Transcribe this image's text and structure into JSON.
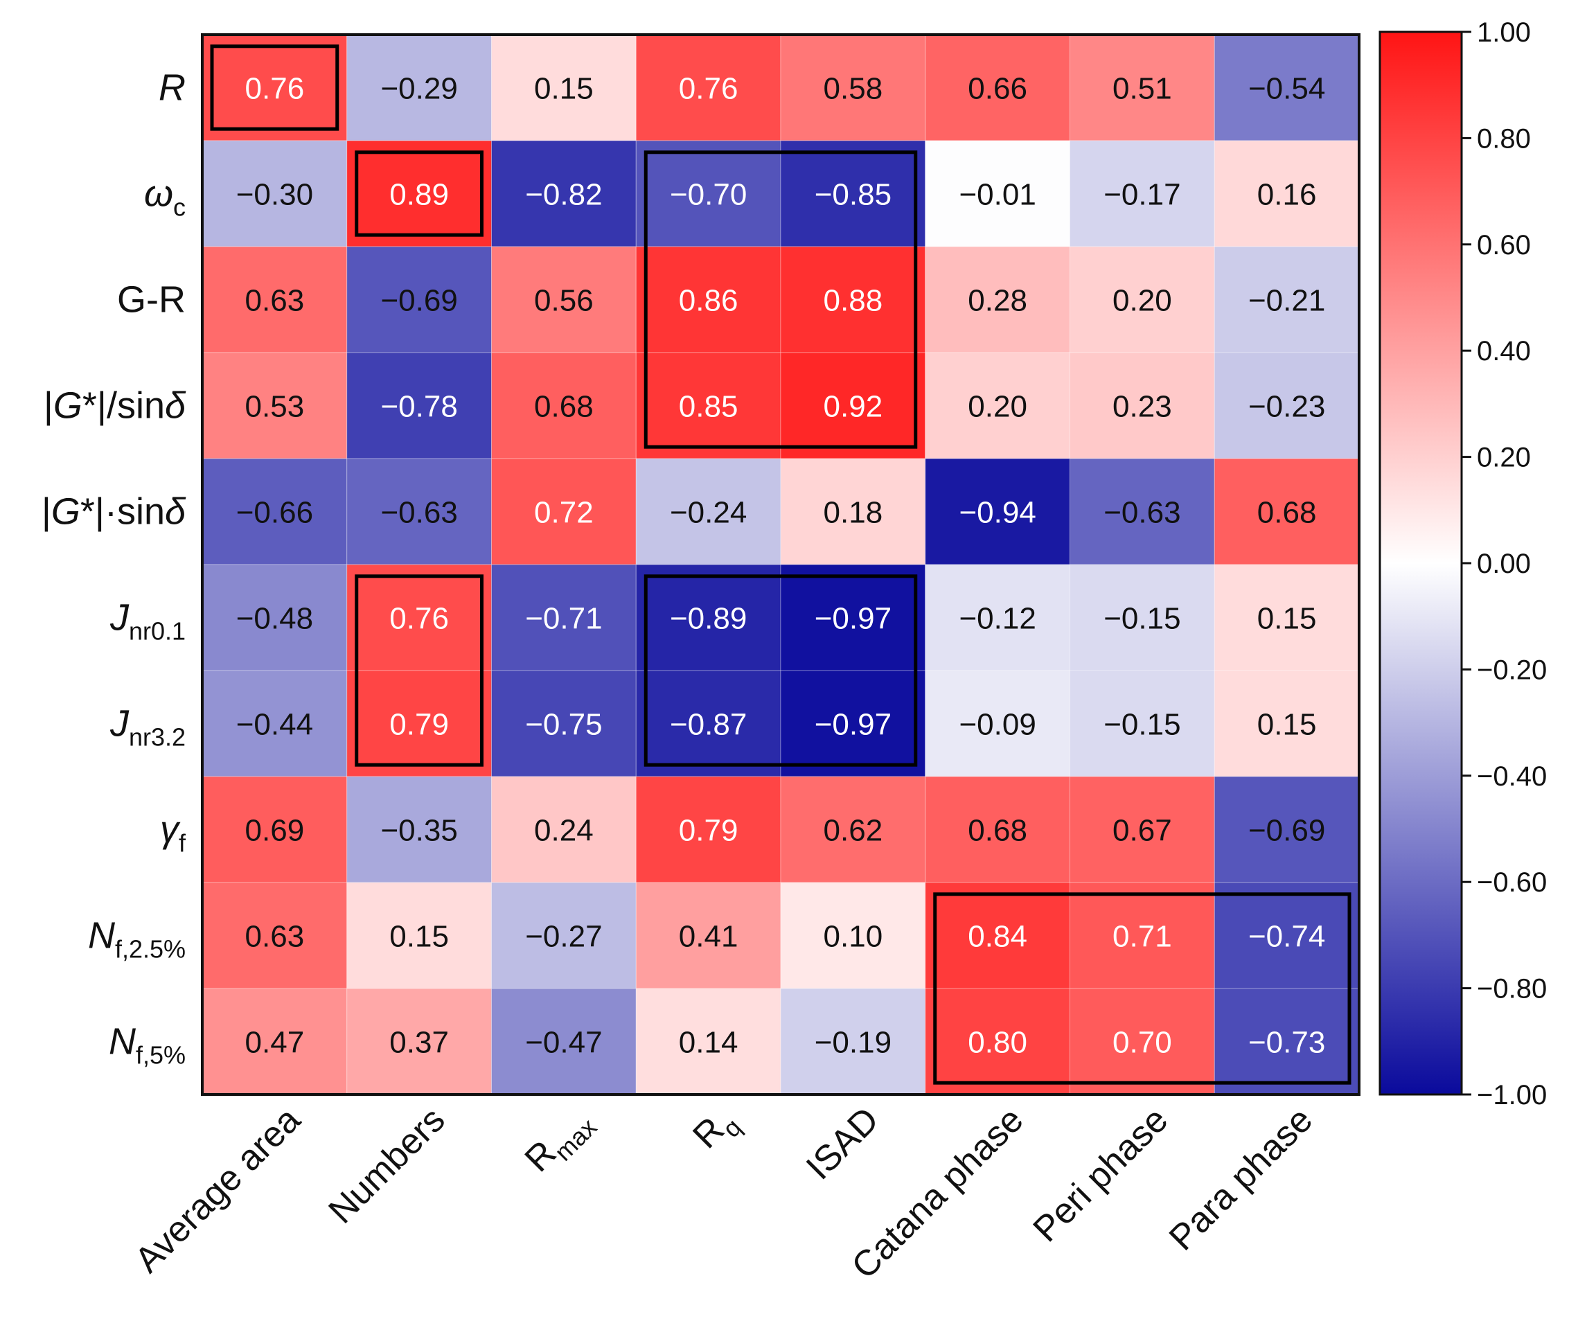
{
  "chart_data": {
    "type": "heatmap",
    "title": "",
    "rows": [
      "R",
      "ωc",
      "G-R",
      "|G*|/sinδ",
      "|G*|·sinδ",
      "Jnr0.1",
      "Jnr3.2",
      "γf",
      "Nf,2.5%",
      "Nf,5%"
    ],
    "row_parts": [
      {
        "main": "R",
        "sub": "",
        "italic": true
      },
      {
        "main": "ω",
        "sub": "c",
        "italic": true
      },
      {
        "main": "G-R",
        "sub": "",
        "italic": false
      },
      {
        "pre": "|",
        "main": "G",
        "post": "*|/sin",
        "last": "δ",
        "sub": "",
        "italic": "mixed"
      },
      {
        "pre": "|",
        "main": "G",
        "post": "*|·sin",
        "last": "δ",
        "sub": "",
        "italic": "mixed"
      },
      {
        "main": "J",
        "sub": "nr0.1",
        "italic": true
      },
      {
        "main": "J",
        "sub": "nr3.2",
        "italic": true
      },
      {
        "main": "γ",
        "sub": "f",
        "italic": true
      },
      {
        "main": "N",
        "sub": "f,2.5%",
        "italic": true
      },
      {
        "main": "N",
        "sub": "f,5%",
        "italic": true
      }
    ],
    "columns": [
      "Average area",
      "Numbers",
      "Rmax",
      "Rq",
      "ISAD",
      "Catana phase",
      "Peri phase",
      "Para phase"
    ],
    "column_parts": [
      {
        "main": "Average area",
        "sub": ""
      },
      {
        "main": "Numbers",
        "sub": ""
      },
      {
        "main": "R",
        "sub": "max"
      },
      {
        "main": "R",
        "sub": "q"
      },
      {
        "main": "ISAD",
        "sub": ""
      },
      {
        "main": "Catana phase",
        "sub": ""
      },
      {
        "main": "Peri phase",
        "sub": ""
      },
      {
        "main": "Para phase",
        "sub": ""
      }
    ],
    "values": [
      [
        0.76,
        -0.29,
        0.15,
        0.76,
        0.58,
        0.66,
        0.51,
        -0.54
      ],
      [
        -0.3,
        0.89,
        -0.82,
        -0.7,
        -0.85,
        -0.01,
        -0.17,
        0.16
      ],
      [
        0.63,
        -0.69,
        0.56,
        0.86,
        0.88,
        0.28,
        0.2,
        -0.21
      ],
      [
        0.53,
        -0.78,
        0.68,
        0.85,
        0.92,
        0.2,
        0.23,
        -0.23
      ],
      [
        -0.66,
        -0.63,
        0.72,
        -0.24,
        0.18,
        -0.94,
        -0.63,
        0.68
      ],
      [
        -0.48,
        0.76,
        -0.71,
        -0.89,
        -0.97,
        -0.12,
        -0.15,
        0.15
      ],
      [
        -0.44,
        0.79,
        -0.75,
        -0.87,
        -0.97,
        -0.09,
        -0.15,
        0.15
      ],
      [
        0.69,
        -0.35,
        0.24,
        0.79,
        0.62,
        0.68,
        0.67,
        -0.69
      ],
      [
        0.63,
        0.15,
        -0.27,
        0.41,
        0.1,
        0.84,
        0.71,
        -0.74
      ],
      [
        0.47,
        0.37,
        -0.47,
        0.14,
        -0.19,
        0.8,
        0.7,
        -0.73
      ]
    ],
    "highlight_boxes": [
      {
        "row_start": 0,
        "row_end": 0,
        "col_start": 0,
        "col_end": 0
      },
      {
        "row_start": 1,
        "row_end": 1,
        "col_start": 1,
        "col_end": 1
      },
      {
        "row_start": 1,
        "row_end": 3,
        "col_start": 3,
        "col_end": 4
      },
      {
        "row_start": 5,
        "row_end": 6,
        "col_start": 1,
        "col_end": 1
      },
      {
        "row_start": 5,
        "row_end": 6,
        "col_start": 3,
        "col_end": 4
      },
      {
        "row_start": 8,
        "row_end": 9,
        "col_start": 5,
        "col_end": 7
      }
    ],
    "colorbar": {
      "range": [
        -1.0,
        1.0
      ],
      "ticks": [
        "1.00",
        "0.80",
        "0.60",
        "0.40",
        "0.20",
        "0.00",
        "-0.20",
        "-0.40",
        "-0.60",
        "-0.80",
        "-1.00"
      ],
      "colors": {
        "negative": "#0a0a9c",
        "zero": "#ffffff",
        "positive": "#ff1414"
      }
    }
  }
}
